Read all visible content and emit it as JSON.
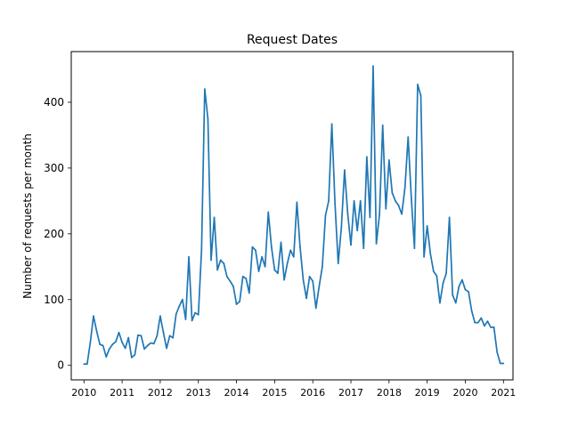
{
  "chart_data": {
    "type": "line",
    "title": "Request Dates",
    "xlabel": "",
    "ylabel": "Number of requests per month",
    "x_ticks": [
      "2010",
      "2011",
      "2012",
      "2013",
      "2014",
      "2015",
      "2016",
      "2017",
      "2018",
      "2019",
      "2020",
      "2021"
    ],
    "y_ticks": [
      "0",
      "100",
      "200",
      "300",
      "400"
    ],
    "xlim": [
      "2009-09",
      "2021-04"
    ],
    "ylim": [
      -22,
      477
    ],
    "grid": false,
    "series": [
      {
        "color": "#1f77b4",
        "x": [
          "2010-01",
          "2010-02",
          "2010-03",
          "2010-04",
          "2010-05",
          "2010-06",
          "2010-07",
          "2010-08",
          "2010-09",
          "2010-10",
          "2010-11",
          "2010-12",
          "2011-01",
          "2011-02",
          "2011-03",
          "2011-04",
          "2011-05",
          "2011-06",
          "2011-07",
          "2011-08",
          "2011-09",
          "2011-10",
          "2011-11",
          "2011-12",
          "2012-01",
          "2012-02",
          "2012-03",
          "2012-04",
          "2012-05",
          "2012-06",
          "2012-07",
          "2012-08",
          "2012-09",
          "2012-10",
          "2012-11",
          "2012-12",
          "2013-01",
          "2013-02",
          "2013-03",
          "2013-04",
          "2013-05",
          "2013-06",
          "2013-07",
          "2013-08",
          "2013-09",
          "2013-10",
          "2013-11",
          "2013-12",
          "2014-01",
          "2014-02",
          "2014-03",
          "2014-04",
          "2014-05",
          "2014-06",
          "2014-07",
          "2014-08",
          "2014-09",
          "2014-10",
          "2014-11",
          "2014-12",
          "2015-01",
          "2015-02",
          "2015-03",
          "2015-04",
          "2015-05",
          "2015-06",
          "2015-07",
          "2015-08",
          "2015-09",
          "2015-10",
          "2015-11",
          "2015-12",
          "2016-01",
          "2016-02",
          "2016-03",
          "2016-04",
          "2016-05",
          "2016-06",
          "2016-07",
          "2016-08",
          "2016-09",
          "2016-10",
          "2016-11",
          "2016-12",
          "2017-01",
          "2017-02",
          "2017-03",
          "2017-04",
          "2017-05",
          "2017-06",
          "2017-07",
          "2017-08",
          "2017-09",
          "2017-10",
          "2017-11",
          "2017-12",
          "2018-01",
          "2018-02",
          "2018-03",
          "2018-04",
          "2018-05",
          "2018-06",
          "2018-07",
          "2018-08",
          "2018-09",
          "2018-10",
          "2018-11",
          "2018-12",
          "2019-01",
          "2019-02",
          "2019-03",
          "2019-04",
          "2019-05",
          "2019-06",
          "2019-07",
          "2019-08",
          "2019-09",
          "2019-10",
          "2019-11",
          "2019-12",
          "2020-01",
          "2020-02",
          "2020-03",
          "2020-04",
          "2020-05",
          "2020-06",
          "2020-07",
          "2020-08",
          "2020-09",
          "2020-10",
          "2020-11",
          "2020-12",
          "2021-01"
        ],
        "y": [
          2,
          2,
          35,
          75,
          52,
          32,
          30,
          13,
          25,
          32,
          36,
          50,
          35,
          26,
          42,
          12,
          16,
          46,
          45,
          25,
          30,
          34,
          33,
          45,
          75,
          50,
          26,
          45,
          42,
          78,
          90,
          100,
          70,
          165,
          68,
          80,
          77,
          175,
          420,
          375,
          160,
          225,
          145,
          160,
          155,
          135,
          128,
          120,
          93,
          97,
          135,
          132,
          110,
          180,
          175,
          143,
          165,
          150,
          233,
          180,
          145,
          140,
          187,
          130,
          155,
          175,
          165,
          248,
          180,
          130,
          102,
          135,
          128,
          87,
          120,
          150,
          228,
          250,
          367,
          245,
          155,
          210,
          297,
          230,
          183,
          250,
          205,
          250,
          178,
          317,
          225,
          455,
          185,
          230,
          365,
          238,
          312,
          262,
          250,
          243,
          230,
          270,
          347,
          255,
          178,
          427,
          410,
          165,
          212,
          170,
          143,
          136,
          95,
          125,
          140,
          225,
          107,
          95,
          120,
          130,
          115,
          112,
          83,
          65,
          65,
          72,
          60,
          67,
          58,
          58,
          20,
          3,
          3
        ]
      }
    ]
  }
}
